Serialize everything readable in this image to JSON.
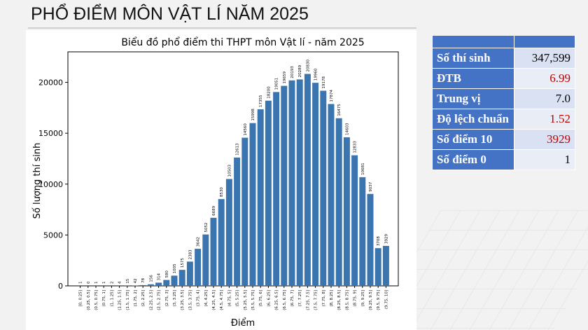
{
  "slide": {
    "title": "PHỔ ĐIỂM MÔN VẬT LÍ NĂM 2025"
  },
  "stats": {
    "rows": [
      {
        "label": "Số thí sinh",
        "value": "347,599",
        "highlight": false
      },
      {
        "label": "ĐTB",
        "value": "6.99",
        "highlight": true
      },
      {
        "label": "Trung vị",
        "value": "7.0",
        "highlight": false
      },
      {
        "label": "Độ lệch chuẩn",
        "value": "1.52",
        "highlight": true
      },
      {
        "label": "Số điểm 10",
        "value": "3929",
        "highlight": true
      },
      {
        "label": "Số điểm 0",
        "value": "1",
        "highlight": false
      }
    ],
    "colors": {
      "header": "#4472c4",
      "highlight_text": "#c00000"
    }
  },
  "chart_data": {
    "type": "bar",
    "title": "Biểu đồ phổ điểm thi THPT môn Vật lí - năm 2025",
    "xlabel": "Điểm",
    "ylabel": "Số lượng thí sinh",
    "ylim": [
      0,
      23000
    ],
    "yticks": [
      0,
      5000,
      10000,
      15000,
      20000
    ],
    "grid": false,
    "bar_color": "#3a75b0",
    "categories": [
      "[0, 0.25]",
      "(0.25, 0.5]",
      "(0.5, 0.75]",
      "(0.75, 1]",
      "(1, 1.25]",
      "(1.25, 1.5]",
      "(1.5, 1.75]",
      "(1.75, 2]",
      "(2, 2.25]",
      "(2.25, 2.5]",
      "(2.5, 2.75]",
      "(2.75, 3]",
      "(3, 3.25]",
      "(3.25, 3.5]",
      "(3.5, 3.75]",
      "(3.75, 4]",
      "(4, 4.25]",
      "(4.25, 4.5]",
      "(4.5, 4.75]",
      "(4.75, 5]",
      "(5, 5.25]",
      "(5.25, 5.5]",
      "(5.5, 5.75]",
      "(5.75, 6]",
      "(6, 6.25]",
      "(6.25, 6.5]",
      "(6.5, 6.75]",
      "(6.75, 7]",
      "(7, 7.25]",
      "(7.25, 7.5]",
      "(7.5, 7.75]",
      "(7.75, 8]",
      "(8, 8.25]",
      "(8.25, 8.5]",
      "(8.5, 8.75]",
      "(8.75, 9]",
      "(9, 9.25]",
      "(9.25, 9.5]",
      "(9.5, 9.75]",
      "(9.75, 10]"
    ],
    "values": [
      1,
      0,
      1,
      1,
      2,
      4,
      15,
      42,
      78,
      156,
      314,
      580,
      1005,
      1575,
      2383,
      3642,
      5052,
      6689,
      8530,
      10503,
      12613,
      14560,
      15998,
      17355,
      18200,
      19051,
      19659,
      20193,
      20289,
      20830,
      19960,
      19178,
      17874,
      16475,
      14603,
      12833,
      10681,
      9037,
      3708,
      3929
    ]
  }
}
